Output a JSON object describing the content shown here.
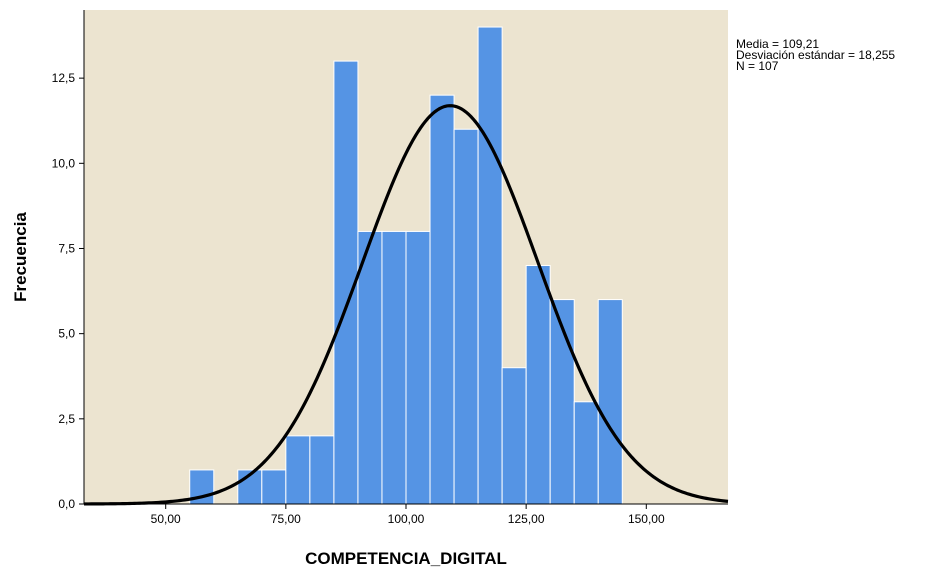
{
  "chart_data": {
    "type": "bar",
    "subtype": "histogram",
    "xlabel": "COMPETENCIA_DIGITAL",
    "ylabel": "Frecuencia",
    "xlim": [
      33,
      167
    ],
    "ylim": [
      0,
      14.5
    ],
    "xticks": [
      50,
      75,
      100,
      125,
      150
    ],
    "xtick_labels": [
      "50,00",
      "75,00",
      "100,00",
      "125,00",
      "150,00"
    ],
    "yticks": [
      0,
      2.5,
      5,
      7.5,
      10,
      12.5
    ],
    "ytick_labels": [
      "0,0",
      "2,5",
      "5,0",
      "7,5",
      "10,0",
      "12,5"
    ],
    "bin_width": 5,
    "bins": [
      {
        "start": 55,
        "end": 60,
        "count": 1
      },
      {
        "start": 60,
        "end": 65,
        "count": 0
      },
      {
        "start": 65,
        "end": 70,
        "count": 1
      },
      {
        "start": 70,
        "end": 75,
        "count": 1
      },
      {
        "start": 75,
        "end": 80,
        "count": 2
      },
      {
        "start": 80,
        "end": 85,
        "count": 2
      },
      {
        "start": 85,
        "end": 90,
        "count": 13
      },
      {
        "start": 90,
        "end": 95,
        "count": 8
      },
      {
        "start": 95,
        "end": 100,
        "count": 8
      },
      {
        "start": 100,
        "end": 105,
        "count": 8
      },
      {
        "start": 105,
        "end": 110,
        "count": 12
      },
      {
        "start": 110,
        "end": 115,
        "count": 11
      },
      {
        "start": 115,
        "end": 120,
        "count": 14
      },
      {
        "start": 120,
        "end": 125,
        "count": 4
      },
      {
        "start": 125,
        "end": 130,
        "count": 7
      },
      {
        "start": 130,
        "end": 135,
        "count": 6
      },
      {
        "start": 135,
        "end": 140,
        "count": 3
      },
      {
        "start": 140,
        "end": 145,
        "count": 6
      }
    ],
    "normal_curve": {
      "mean": 109.21,
      "std": 18.255,
      "n": 107
    },
    "stats_lines": [
      "Media = 109,21",
      "Desviación estándar = 18,255",
      "N = 107"
    ],
    "colors": {
      "plot_background": "#ECE4D0",
      "bar_fill": "#5594E4",
      "bar_stroke": "#FFFFFF",
      "curve": "#000000"
    }
  }
}
